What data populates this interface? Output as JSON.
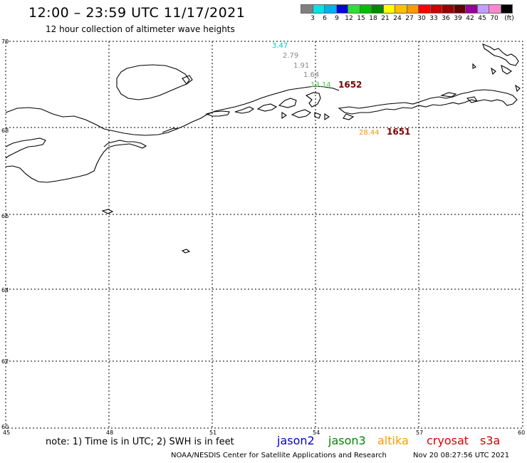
{
  "header": {
    "title": "12:00 – 23:59 UTC 11/17/2021",
    "subtitle": "12 hour collection of altimeter wave heights"
  },
  "colorbar": {
    "colors": [
      "#808080",
      "#00e5e5",
      "#00b0f0",
      "#0000e0",
      "#30e030",
      "#00c000",
      "#008800",
      "#ffff00",
      "#ffc000",
      "#ff9900",
      "#ff0000",
      "#cc0000",
      "#990000",
      "#660000",
      "#990099",
      "#c0a0ff",
      "#ff88cc",
      "#000000"
    ],
    "labels": [
      "3",
      "6",
      "9",
      "12",
      "15",
      "18",
      "21",
      "24",
      "27",
      "30",
      "33",
      "36",
      "39",
      "42",
      "45",
      "70",
      "(ft)"
    ]
  },
  "map": {
    "lat_labels": [
      "70",
      "68",
      "66",
      "64",
      "62",
      "60"
    ],
    "lon_labels": [
      "45",
      "48",
      "51",
      "54",
      "57",
      "60"
    ],
    "points": [
      {
        "value": "3.47",
        "color": "#00c8c8"
      },
      {
        "value": "2.79",
        "color": "#888888"
      },
      {
        "value": "1.91",
        "color": "#888888"
      },
      {
        "value": "1.64",
        "color": "#888888"
      },
      {
        "value": "13.14",
        "color": "#44cc44"
      },
      {
        "value": "28.44",
        "color": "#ee9900"
      }
    ],
    "passes": [
      {
        "label": "1652"
      },
      {
        "label": "1651"
      }
    ]
  },
  "footer": {
    "note": "note: 1) Time is in UTC; 2) SWH is in feet",
    "satellites": [
      {
        "name": "jason2",
        "color": "#0000cc"
      },
      {
        "name": "jason3",
        "color": "#008800"
      },
      {
        "name": "altika",
        "color": "#ff9900"
      },
      {
        "name": "cryosat",
        "color": "#dd0000"
      },
      {
        "name": "s3a",
        "color": "#cc0000"
      }
    ],
    "credit": "NOAA/NESDIS Center for Satellite Applications and Research",
    "timestamp": "Nov 20 08:27:56 UTC 2021"
  }
}
